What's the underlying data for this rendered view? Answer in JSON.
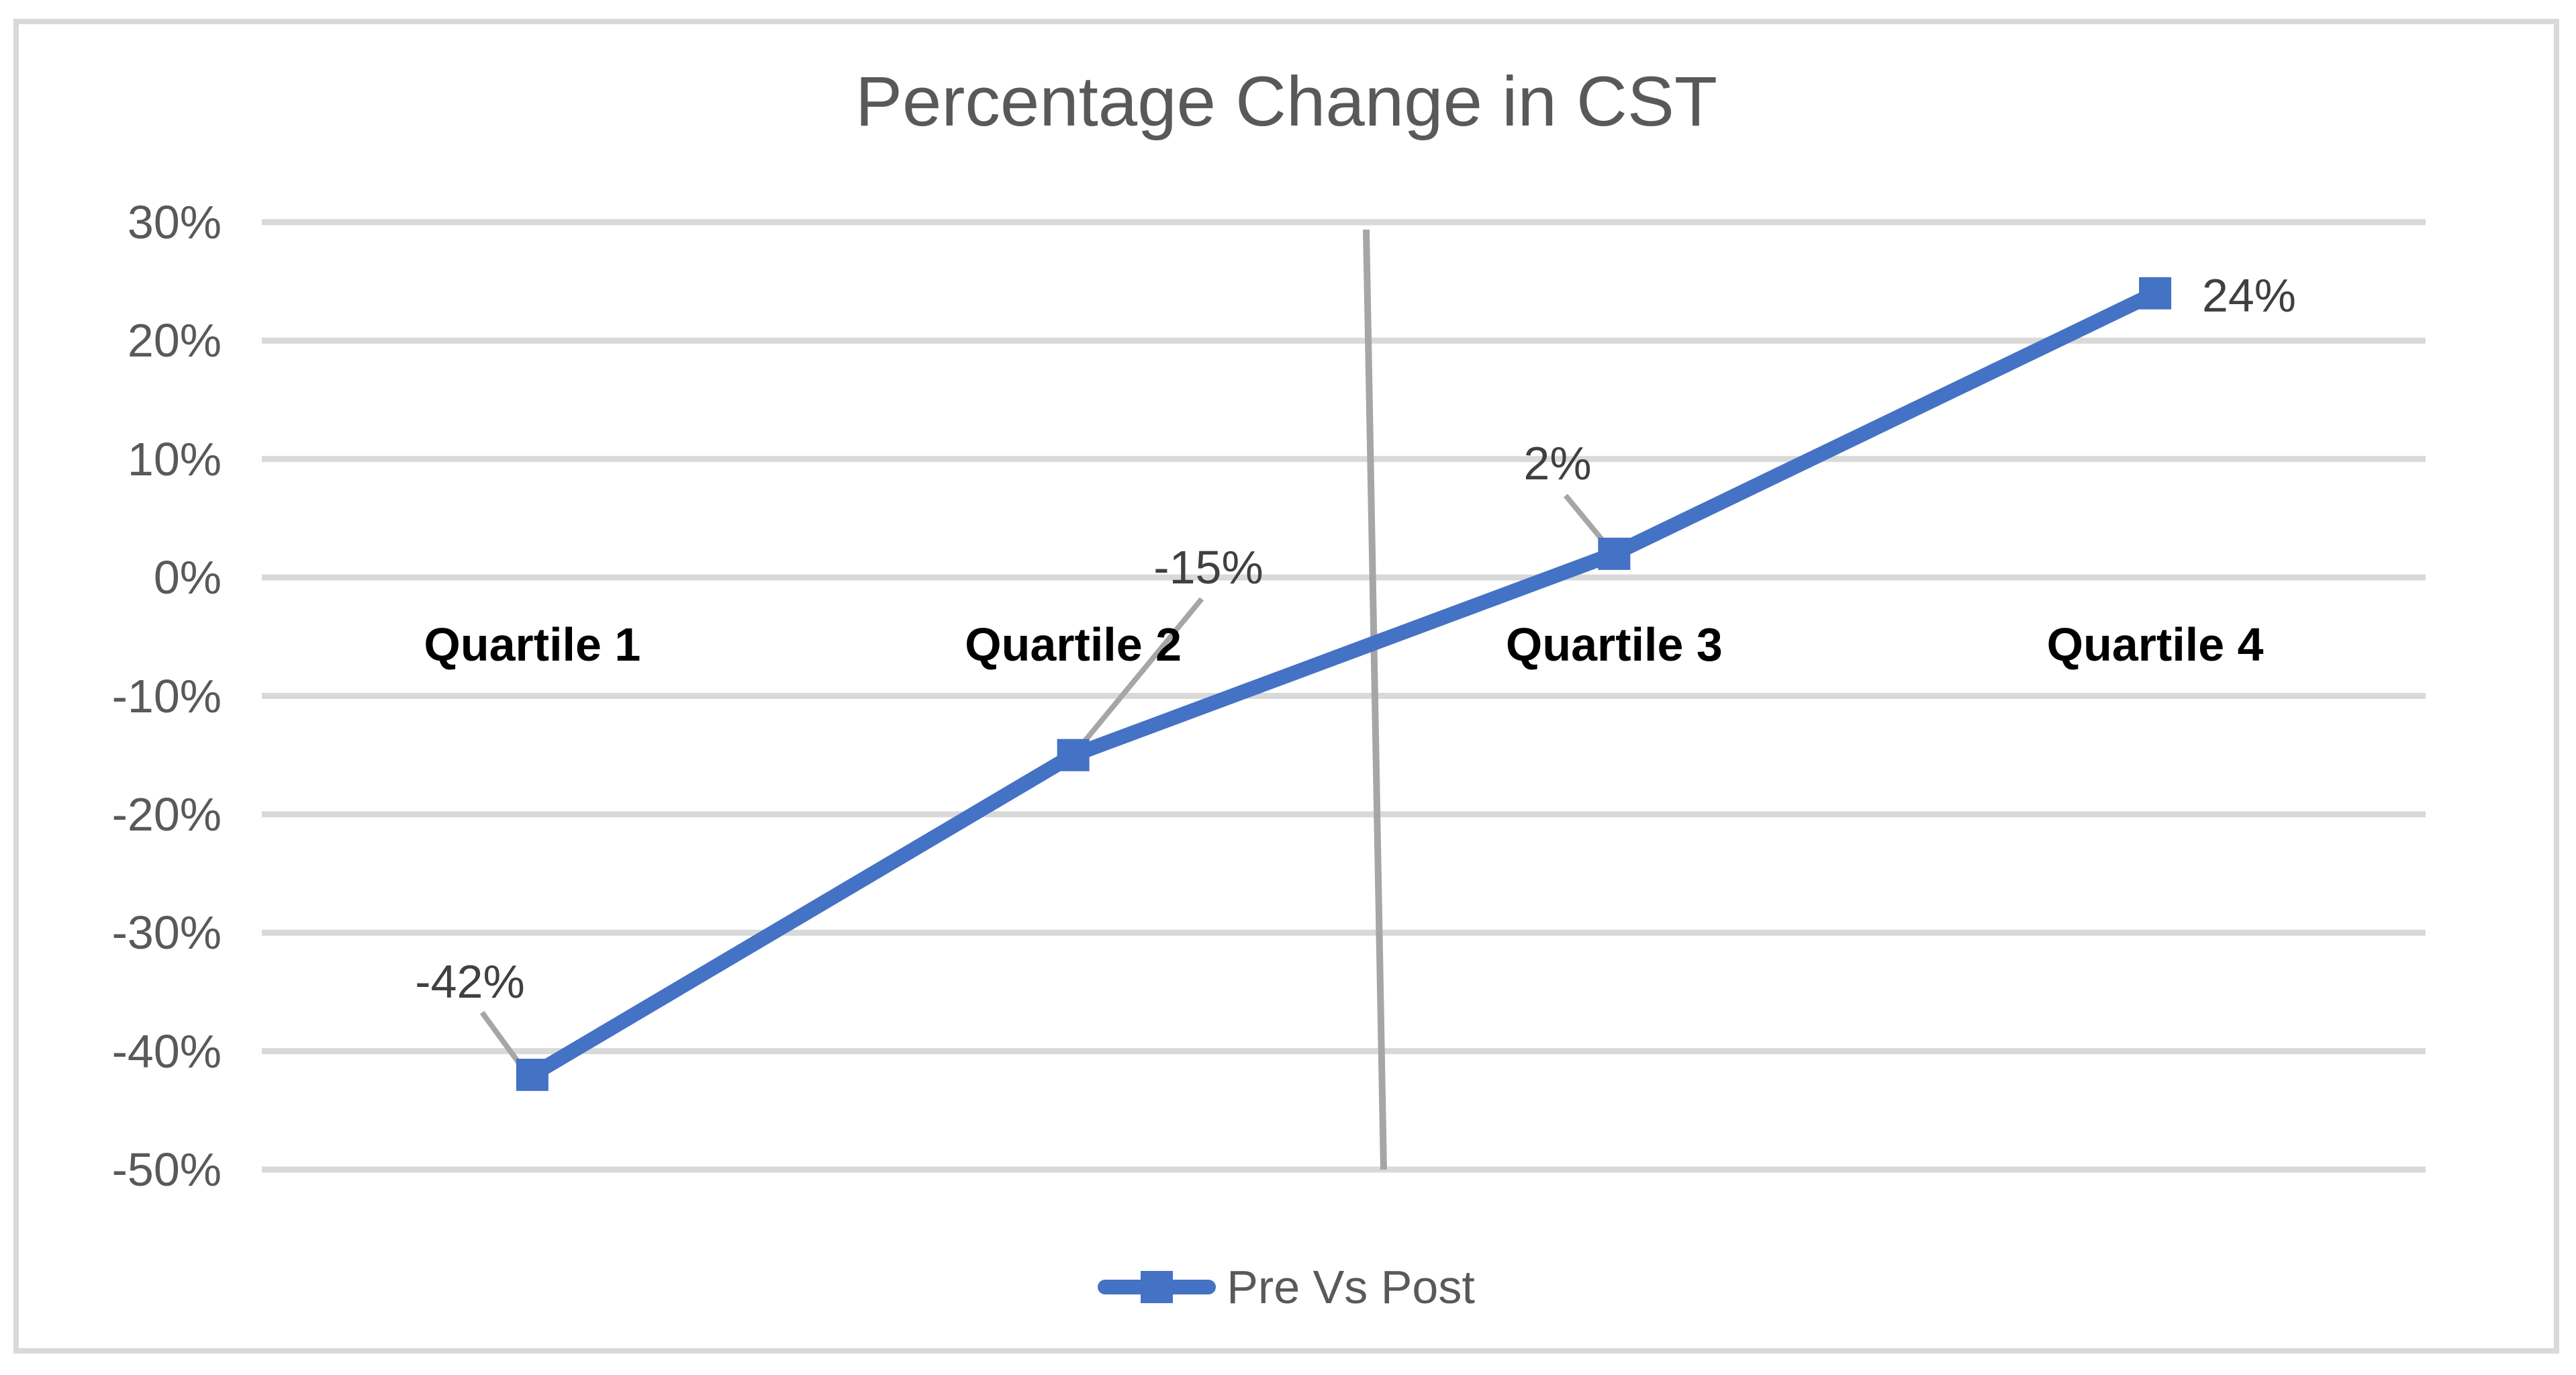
{
  "chart_data": {
    "type": "line",
    "title": "Percentage Change in CST",
    "categories": [
      "Quartile 1",
      "Quartile 2",
      "Quartile 3",
      "Quartile 4"
    ],
    "series": [
      {
        "name": "Pre Vs Post",
        "values": [
          -42,
          -15,
          2,
          24
        ],
        "color": "#4472C4",
        "marker": "square"
      }
    ],
    "data_labels": [
      "-42%",
      "-15%",
      "2%",
      "24%"
    ],
    "y_ticks": [
      "30%",
      "20%",
      "10%",
      "0%",
      "-10%",
      "-20%",
      "-30%",
      "-40%",
      "-50%"
    ],
    "y_tick_values": [
      30,
      20,
      10,
      0,
      -10,
      -20,
      -30,
      -40,
      -50
    ],
    "ylim": [
      -50,
      30
    ],
    "xlabel": "",
    "ylabel": "",
    "grid": "horizontal",
    "legend_position": "bottom",
    "annotations": [
      {
        "type": "vertical-line",
        "description": "gray divider line between Quartile 2 and Quartile 3 spanning full plot height",
        "color": "#A6A6A6"
      },
      {
        "type": "leader-lines",
        "description": "gray callout lines connecting data labels -42%, -15% and 2% to their markers",
        "color": "#A6A6A6"
      }
    ]
  },
  "colors": {
    "series_blue": "#4472C4",
    "gridline": "#D9D9D9",
    "frame_border": "#D9D9D9",
    "title_text": "#595959",
    "axis_text": "#595959",
    "data_label_text": "#404040",
    "category_label_text": "#000000",
    "leader_gray": "#A6A6A6",
    "background": "#FFFFFF"
  }
}
